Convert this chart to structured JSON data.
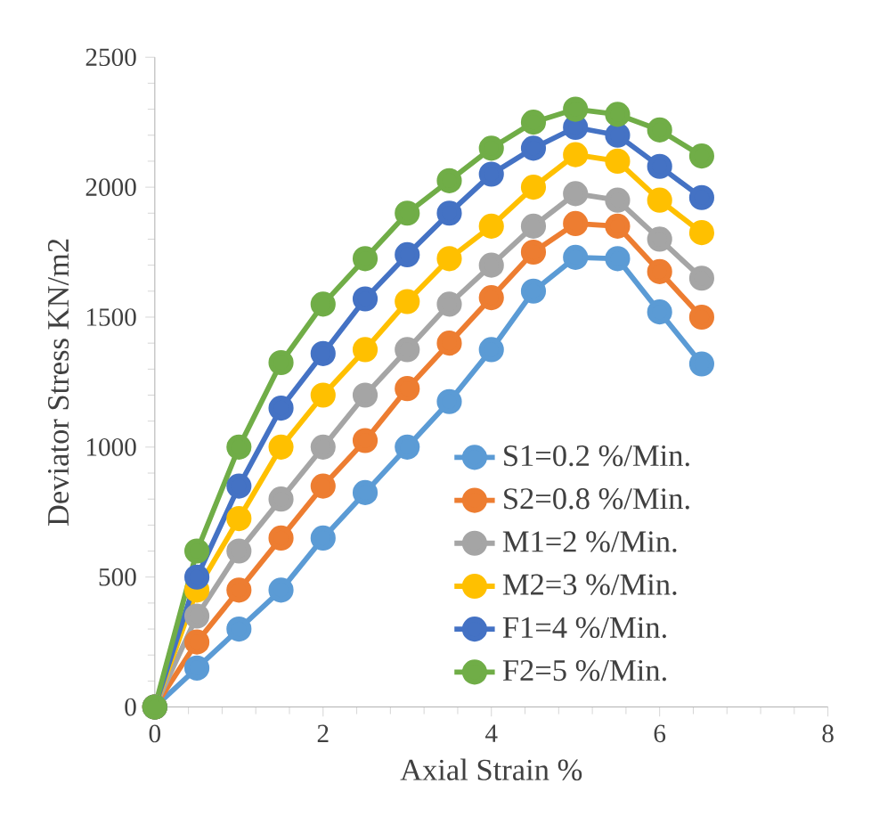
{
  "chart_data": {
    "type": "line",
    "xlabel": "Axial Strain %",
    "ylabel": "Deviator Stress KN/m2",
    "x": [
      0,
      0.5,
      1,
      1.5,
      2,
      2.5,
      3,
      3.5,
      4,
      4.5,
      5,
      5.5,
      6,
      6.5
    ],
    "series": [
      {
        "name": "S1=0.2 %/Min.",
        "color": "#5b9bd5",
        "values": [
          0,
          150,
          300,
          450,
          650,
          825,
          1000,
          1175,
          1375,
          1600,
          1730,
          1725,
          1520,
          1320
        ]
      },
      {
        "name": "S2=0.8 %/Min.",
        "color": "#ed7d31",
        "values": [
          0,
          250,
          450,
          650,
          850,
          1025,
          1225,
          1400,
          1575,
          1750,
          1860,
          1850,
          1675,
          1500
        ]
      },
      {
        "name": "M1=2 %/Min.",
        "color": "#a5a5a5",
        "values": [
          0,
          350,
          600,
          800,
          1000,
          1200,
          1375,
          1550,
          1700,
          1850,
          1975,
          1950,
          1800,
          1650
        ]
      },
      {
        "name": "M2=3 %/Min.",
        "color": "#ffc000",
        "values": [
          0,
          450,
          725,
          1000,
          1200,
          1375,
          1560,
          1725,
          1850,
          2000,
          2125,
          2100,
          1950,
          1825
        ]
      },
      {
        "name": "F1=4 %/Min.",
        "color": "#4472c4",
        "values": [
          0,
          500,
          850,
          1150,
          1360,
          1570,
          1740,
          1900,
          2050,
          2150,
          2230,
          2200,
          2080,
          1960
        ]
      },
      {
        "name": "F2=5 %/Min.",
        "color": "#70ad47",
        "values": [
          0,
          600,
          1000,
          1325,
          1550,
          1725,
          1900,
          2025,
          2150,
          2250,
          2300,
          2280,
          2220,
          2120
        ]
      }
    ],
    "xlim": [
      0,
      8
    ],
    "xticks": [
      0,
      2,
      4,
      6,
      8
    ],
    "ylim": [
      0,
      2500
    ],
    "yticks": [
      0,
      500,
      1000,
      1500,
      2000,
      2500
    ],
    "grid": false,
    "legend": "bottom right",
    "marker": "circle",
    "line_style": "solid"
  }
}
